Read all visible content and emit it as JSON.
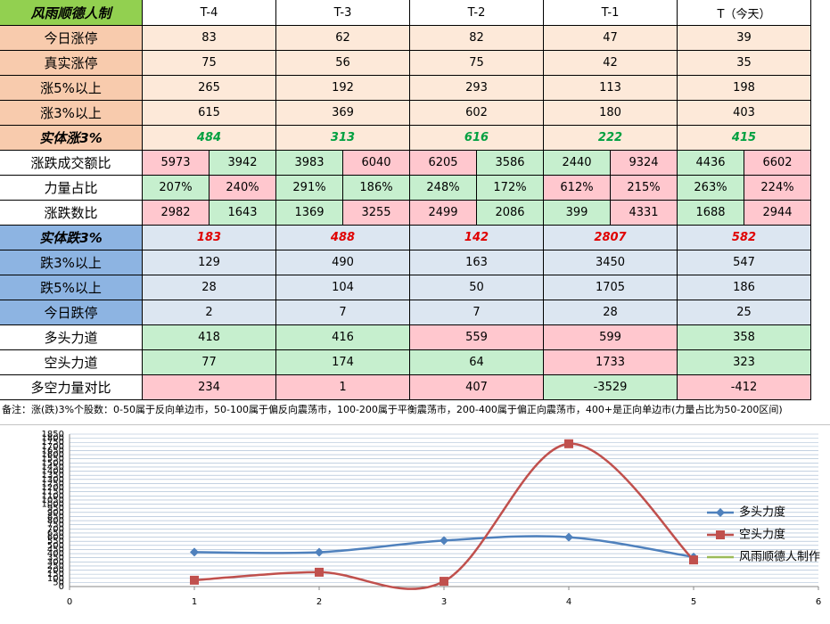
{
  "table": {
    "header": [
      "风雨顺德人制",
      "T-4",
      "T-3",
      "T-2",
      "T-1",
      "T（今天）"
    ],
    "rows": [
      {
        "label": "今日涨停",
        "cells": [
          "83",
          "62",
          "82",
          "47",
          "39"
        ]
      },
      {
        "label": "真实涨停",
        "cells": [
          "75",
          "56",
          "75",
          "42",
          "35"
        ]
      },
      {
        "label": "涨5%以上",
        "cells": [
          "265",
          "192",
          "293",
          "113",
          "198"
        ]
      },
      {
        "label": "涨3%以上",
        "cells": [
          "615",
          "369",
          "602",
          "180",
          "403"
        ]
      },
      {
        "label": "实体涨3%",
        "cells": [
          "484",
          "313",
          "616",
          "222",
          "415"
        ]
      },
      {
        "label": "涨跌成交额比",
        "cells": [
          "5973",
          "3942",
          "3983",
          "6040",
          "6205",
          "3586",
          "2440",
          "9324",
          "4436",
          "6602"
        ]
      },
      {
        "label": "力量占比",
        "cells": [
          "207%",
          "240%",
          "291%",
          "186%",
          "248%",
          "172%",
          "612%",
          "215%",
          "263%",
          "224%"
        ]
      },
      {
        "label": "涨跌数比",
        "cells": [
          "2982",
          "1643",
          "1369",
          "3255",
          "2499",
          "2086",
          "399",
          "4331",
          "1688",
          "2944"
        ]
      },
      {
        "label": "实体跌3%",
        "cells": [
          "183",
          "488",
          "142",
          "2807",
          "582"
        ]
      },
      {
        "label": "跌3%以上",
        "cells": [
          "129",
          "490",
          "163",
          "3450",
          "547"
        ]
      },
      {
        "label": "跌5%以上",
        "cells": [
          "28",
          "104",
          "50",
          "1705",
          "186"
        ]
      },
      {
        "label": "今日跌停",
        "cells": [
          "2",
          "7",
          "7",
          "28",
          "25"
        ]
      },
      {
        "label": "多头力道",
        "cells": [
          "418",
          "416",
          "559",
          "599",
          "358"
        ]
      },
      {
        "label": "空头力道",
        "cells": [
          "77",
          "174",
          "64",
          "1733",
          "323"
        ]
      },
      {
        "label": "多空力量对比",
        "cells": [
          "234",
          "1",
          "407",
          "-3529",
          "-412"
        ]
      }
    ]
  },
  "note": "备注：涨(跌)3%个股数：0-50属于反向单边市，50-100属于偏反向震荡市，100-200属于平衡震荡市，200-400属于偏正向震荡市，400+是正向单边市(力量占比为50-200区间)",
  "chart_data": {
    "type": "line",
    "x": [
      1,
      2,
      3,
      4,
      5
    ],
    "series": [
      {
        "name": "多头力度",
        "color": "#4f81bd",
        "values": [
          418,
          416,
          559,
          599,
          358
        ]
      },
      {
        "name": "空头力度",
        "color": "#c0504d",
        "values": [
          77,
          174,
          64,
          1733,
          323
        ]
      },
      {
        "name": "风雨顺德人制作",
        "color": "#9bbb59",
        "values": [
          null,
          null,
          null,
          null,
          null
        ]
      }
    ],
    "xlim": [
      0,
      6
    ],
    "xticks": [
      0,
      1,
      2,
      3,
      4,
      5,
      6
    ],
    "ylim": [
      0,
      1850
    ],
    "yticks": [
      0,
      50,
      100,
      150,
      200,
      250,
      300,
      350,
      400,
      450,
      500,
      550,
      600,
      650,
      700,
      750,
      800,
      850,
      900,
      950,
      1000,
      1050,
      1100,
      1150,
      1200,
      1250,
      1300,
      1350,
      1400,
      1450,
      1500,
      1550,
      1600,
      1650,
      1700,
      1750,
      1800,
      1850
    ],
    "grid": true,
    "legend": "right"
  }
}
